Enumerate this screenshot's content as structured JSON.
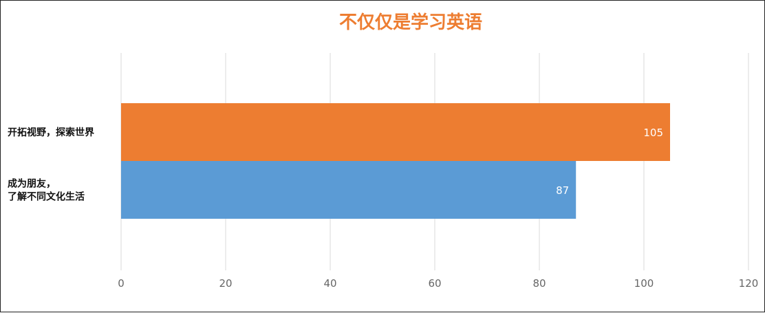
{
  "chart_data": {
    "type": "bar",
    "orientation": "horizontal",
    "title": "不仅仅是学习英语",
    "title_color": "#ED7D31",
    "categories": [
      [
        "开拓视野，探索世界"
      ],
      [
        "成为朋友，",
        "了解不同文化生活"
      ]
    ],
    "values": [
      105,
      87
    ],
    "bar_colors": [
      "#ED7D31",
      "#5B9BD5"
    ],
    "data_labels": [
      "105",
      "87"
    ],
    "xlim": [
      0,
      120
    ],
    "x_ticks": [
      0,
      20,
      40,
      60,
      80,
      100,
      120
    ],
    "grid": true,
    "gridline_color": "#D9D9D9",
    "legend": "none"
  }
}
